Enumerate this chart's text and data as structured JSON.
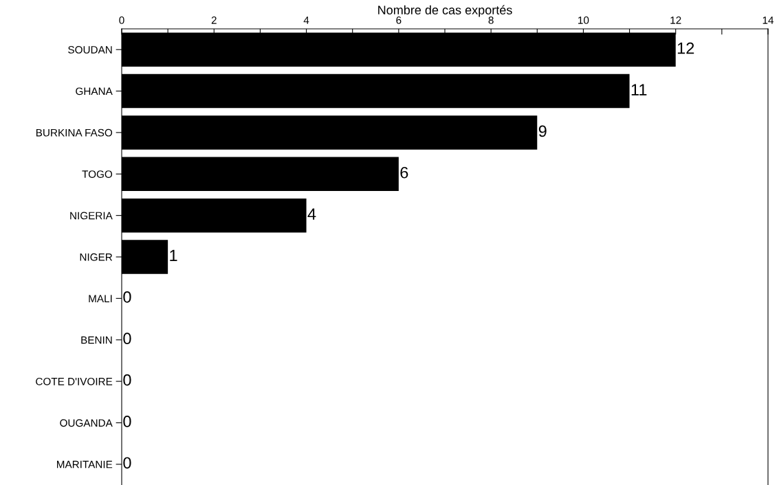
{
  "chart_data": {
    "type": "bar",
    "orientation": "horizontal",
    "xlabel": "Nombre de cas exportés",
    "categories": [
      "SOUDAN",
      "GHANA",
      "BURKINA FASO",
      "TOGO",
      "NIGERIA",
      "NIGER",
      "MALI",
      "BENIN",
      "COTE D'IVOIRE",
      "OUGANDA",
      "MARITANIE"
    ],
    "values": [
      12,
      11,
      9,
      6,
      4,
      1,
      0,
      0,
      0,
      0,
      0
    ],
    "color": "#000000",
    "xlim": [
      0,
      14
    ],
    "xticks": [
      0,
      {
        "value": 1,
        "label": null
      },
      2,
      {
        "value": 3,
        "label": null
      },
      4,
      {
        "value": 5,
        "label": null
      },
      6,
      {
        "value": 7,
        "label": null
      },
      8,
      {
        "value": 9,
        "label": null
      },
      10,
      {
        "value": 11,
        "label": null
      },
      12,
      {
        "value": 13,
        "label": null
      },
      14
    ],
    "data_labels": true,
    "grid": false
  }
}
